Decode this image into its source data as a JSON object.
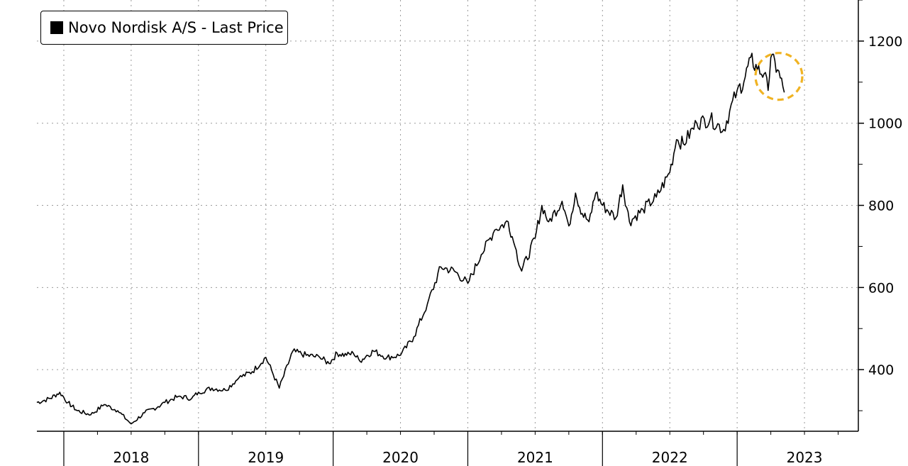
{
  "chart_data": {
    "type": "line",
    "legend": {
      "label": "Novo Nordisk A/S - Last Price",
      "placement": "top-left",
      "swatch_color": "#000000"
    },
    "yaxis": {
      "position": "right",
      "ticks": [
        400,
        600,
        800,
        1000,
        1200
      ],
      "ylim": [
        250,
        1300
      ]
    },
    "xaxis": {
      "year_labels": [
        "2018",
        "2019",
        "2020",
        "2021",
        "2022",
        "2023"
      ],
      "xlim": [
        2017.8,
        2023.9
      ]
    },
    "grid": "dotted",
    "series": [
      {
        "color": "#000000",
        "x": [
          2017.8,
          2017.9,
          2017.97,
          2018.03,
          2018.1,
          2018.2,
          2018.3,
          2018.4,
          2018.5,
          2018.6,
          2018.7,
          2018.75,
          2018.85,
          2018.95,
          2019.0,
          2019.1,
          2019.2,
          2019.3,
          2019.4,
          2019.5,
          2019.6,
          2019.7,
          2019.8,
          2019.9,
          2019.97,
          2020.03,
          2020.1,
          2020.15,
          2020.2,
          2020.25,
          2020.3,
          2020.4,
          2020.5,
          2020.6,
          2020.7,
          2020.8,
          2020.9,
          2021.0,
          2021.1,
          2021.2,
          2021.3,
          2021.35,
          2021.4,
          2021.5,
          2021.55,
          2021.6,
          2021.7,
          2021.75,
          2021.8,
          2021.85,
          2021.9,
          2021.95,
          2022.0,
          2022.1,
          2022.15,
          2022.2,
          2022.3,
          2022.4,
          2022.5,
          2022.55,
          2022.6,
          2022.7,
          2022.8,
          2022.9,
          2023.0,
          2023.05,
          2023.1,
          2023.15,
          2023.2,
          2023.23,
          2023.25,
          2023.3,
          2023.35
        ],
        "y": [
          320,
          330,
          345,
          320,
          300,
          290,
          315,
          300,
          268,
          295,
          310,
          320,
          335,
          330,
          345,
          355,
          350,
          380,
          395,
          430,
          355,
          445,
          435,
          430,
          415,
          440,
          435,
          440,
          420,
          435,
          445,
          430,
          435,
          480,
          560,
          650,
          640,
          610,
          680,
          740,
          760,
          700,
          640,
          720,
          800,
          760,
          810,
          750,
          830,
          780,
          760,
          830,
          800,
          770,
          850,
          760,
          790,
          820,
          880,
          960,
          950,
          1000,
          1010,
          985,
          1080,
          1100,
          1160,
          1130,
          1120,
          1080,
          1160,
          1130,
          1075
        ]
      }
    ]
  }
}
